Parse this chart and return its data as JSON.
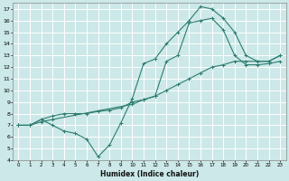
{
  "title": "",
  "xlabel": "Humidex (Indice chaleur)",
  "bg_color": "#cce8e8",
  "grid_color": "#ffffff",
  "line_color": "#2d7d6f",
  "xlim": [
    -0.5,
    23.5
  ],
  "ylim": [
    4,
    17.5
  ],
  "xticks": [
    0,
    1,
    2,
    3,
    4,
    5,
    6,
    7,
    8,
    9,
    10,
    11,
    12,
    13,
    14,
    15,
    16,
    17,
    18,
    19,
    20,
    21,
    22,
    23
  ],
  "yticks": [
    4,
    5,
    6,
    7,
    8,
    9,
    10,
    11,
    12,
    13,
    14,
    15,
    16,
    17
  ],
  "lines": [
    {
      "x": [
        0,
        1,
        2,
        3,
        4,
        5,
        6,
        7,
        8,
        9,
        10,
        11,
        12,
        13,
        14,
        15,
        16,
        17,
        18,
        19,
        20,
        21,
        22,
        23
      ],
      "y": [
        7.0,
        7.0,
        7.5,
        7.0,
        6.5,
        6.3,
        5.8,
        4.3,
        5.3,
        7.2,
        9.3,
        12.3,
        12.7,
        14.0,
        15.0,
        16.0,
        17.2,
        17.0,
        16.2,
        15.0,
        13.0,
        12.5,
        12.5,
        13.0
      ]
    },
    {
      "x": [
        0,
        1,
        2,
        3,
        4,
        5,
        6,
        7,
        8,
        9,
        10,
        11,
        12,
        13,
        14,
        15,
        16,
        17,
        18,
        19,
        20,
        21,
        22,
        23
      ],
      "y": [
        7.0,
        7.0,
        7.5,
        7.8,
        8.0,
        8.0,
        8.0,
        8.2,
        8.3,
        8.5,
        9.0,
        9.2,
        9.5,
        10.0,
        10.5,
        11.0,
        11.5,
        12.0,
        12.2,
        12.5,
        12.5,
        12.5,
        12.5,
        13.0
      ]
    },
    {
      "x": [
        0,
        1,
        2,
        3,
        10,
        11,
        12,
        13,
        14,
        15,
        16,
        17,
        18,
        19,
        20,
        21,
        22,
        23
      ],
      "y": [
        7.0,
        7.0,
        7.3,
        7.5,
        8.8,
        9.2,
        9.5,
        12.5,
        13.0,
        15.8,
        16.0,
        16.2,
        15.2,
        13.0,
        12.2,
        12.2,
        12.3,
        12.5
      ]
    }
  ]
}
